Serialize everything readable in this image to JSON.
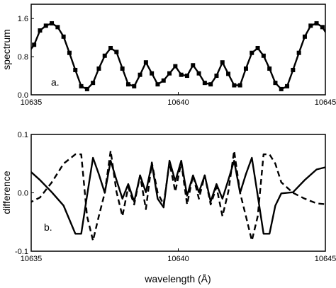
{
  "chart_data": [
    {
      "type": "line",
      "panel_label": "a.",
      "xlabel": "",
      "ylabel": "spectrum",
      "xlim": [
        10635,
        10645
      ],
      "ylim": [
        0.0,
        1.9
      ],
      "x_ticks": [
        10635,
        10640,
        10645
      ],
      "x_tick_labels": [
        "10635",
        "10640",
        "10645"
      ],
      "y_ticks": [
        0.0,
        0.8,
        1.6
      ],
      "y_tick_labels": [
        "0.0",
        "0.8",
        "1.6"
      ],
      "grid": false,
      "series": [
        {
          "marker": "square",
          "line_style": "solid",
          "color": "#000000",
          "x": [
            10634.9,
            10635.1,
            10635.3,
            10635.5,
            10635.7,
            10635.9,
            10636.1,
            10636.3,
            10636.5,
            10636.7,
            10636.9,
            10637.1,
            10637.3,
            10637.5,
            10637.7,
            10637.9,
            10638.1,
            10638.3,
            10638.5,
            10638.7,
            10638.9,
            10639.1,
            10639.3,
            10639.5,
            10639.7,
            10639.9,
            10640.1,
            10640.3,
            10640.5,
            10640.7,
            10640.9,
            10641.1,
            10641.3,
            10641.5,
            10641.7,
            10641.9,
            10642.1,
            10642.3,
            10642.5,
            10642.7,
            10642.9,
            10643.1,
            10643.3,
            10643.5,
            10643.7,
            10643.9,
            10644.1,
            10644.3,
            10644.5,
            10644.7,
            10644.9,
            10645.1
          ],
          "y": [
            0.88,
            1.05,
            1.35,
            1.45,
            1.5,
            1.42,
            1.22,
            0.88,
            0.52,
            0.18,
            0.12,
            0.25,
            0.55,
            0.82,
            0.98,
            0.9,
            0.55,
            0.22,
            0.18,
            0.42,
            0.68,
            0.45,
            0.22,
            0.3,
            0.45,
            0.6,
            0.42,
            0.4,
            0.62,
            0.45,
            0.25,
            0.22,
            0.4,
            0.68,
            0.44,
            0.2,
            0.2,
            0.55,
            0.88,
            0.98,
            0.82,
            0.55,
            0.25,
            0.12,
            0.18,
            0.52,
            0.88,
            1.22,
            1.45,
            1.5,
            1.42,
            1.22
          ]
        }
      ]
    },
    {
      "type": "line",
      "panel_label": "b.",
      "xlabel": "wavelength (Å)",
      "ylabel": "difference",
      "xlim": [
        10635,
        10645
      ],
      "ylim": [
        -0.1,
        0.1
      ],
      "x_ticks": [
        10635,
        10640,
        10645
      ],
      "x_tick_labels": [
        "10635",
        "10640",
        "10645"
      ],
      "y_ticks": [
        -0.1,
        0.0,
        0.1
      ],
      "y_tick_labels": [
        "-0.1",
        "0.0",
        "0.1"
      ],
      "grid": false,
      "series": [
        {
          "line_style": "solid",
          "color": "#000000",
          "x": [
            10634.9,
            10635.3,
            10635.7,
            10636.1,
            10636.5,
            10636.7,
            10636.9,
            10637.1,
            10637.3,
            10637.5,
            10637.7,
            10637.9,
            10638.1,
            10638.3,
            10638.5,
            10638.7,
            10638.9,
            10639.1,
            10639.3,
            10639.5,
            10639.7,
            10639.9,
            10640.1,
            10640.3,
            10640.5,
            10640.7,
            10640.9,
            10641.1,
            10641.3,
            10641.5,
            10641.7,
            10641.9,
            10642.1,
            10642.3,
            10642.5,
            10642.7,
            10642.9,
            10643.1,
            10643.3,
            10643.5,
            10643.9,
            10644.3,
            10644.7,
            10645.1
          ],
          "y": [
            0.04,
            0.022,
            0.001,
            -0.022,
            -0.07,
            -0.07,
            -0.005,
            0.06,
            0.032,
            0.0,
            0.055,
            0.022,
            -0.01,
            0.015,
            -0.015,
            0.03,
            0.001,
            0.05,
            -0.01,
            -0.025,
            0.055,
            0.02,
            0.055,
            -0.005,
            0.03,
            0.001,
            0.03,
            -0.015,
            0.015,
            -0.01,
            0.022,
            0.055,
            0.0,
            0.032,
            0.06,
            -0.005,
            -0.07,
            -0.07,
            -0.022,
            -0.001,
            0.001,
            0.022,
            0.04,
            0.045
          ]
        },
        {
          "line_style": "dashed",
          "color": "#000000",
          "x": [
            10634.9,
            10635.3,
            10635.7,
            10636.1,
            10636.5,
            10636.7,
            10636.9,
            10637.1,
            10637.3,
            10637.5,
            10637.7,
            10637.9,
            10638.1,
            10638.3,
            10638.5,
            10638.7,
            10638.9,
            10639.1,
            10639.3,
            10639.5,
            10639.7,
            10639.9,
            10640.1,
            10640.3,
            10640.5,
            10640.7,
            10640.9,
            10641.1,
            10641.3,
            10641.5,
            10641.7,
            10641.9,
            10642.1,
            10642.3,
            10642.5,
            10642.7,
            10642.9,
            10643.1,
            10643.3,
            10643.5,
            10643.9,
            10644.3,
            10644.7,
            10645.1
          ],
          "y": [
            -0.018,
            -0.008,
            0.018,
            0.05,
            0.066,
            0.066,
            -0.04,
            -0.082,
            -0.04,
            0.0,
            0.072,
            0.002,
            -0.04,
            0.01,
            -0.02,
            0.03,
            -0.028,
            0.052,
            0.0,
            -0.02,
            0.052,
            0.002,
            0.052,
            -0.02,
            0.03,
            -0.01,
            0.03,
            -0.02,
            0.01,
            -0.04,
            0.002,
            0.072,
            0.0,
            -0.04,
            -0.082,
            -0.04,
            0.066,
            0.066,
            0.05,
            0.018,
            0.0,
            -0.01,
            -0.018,
            -0.02
          ]
        }
      ]
    }
  ]
}
